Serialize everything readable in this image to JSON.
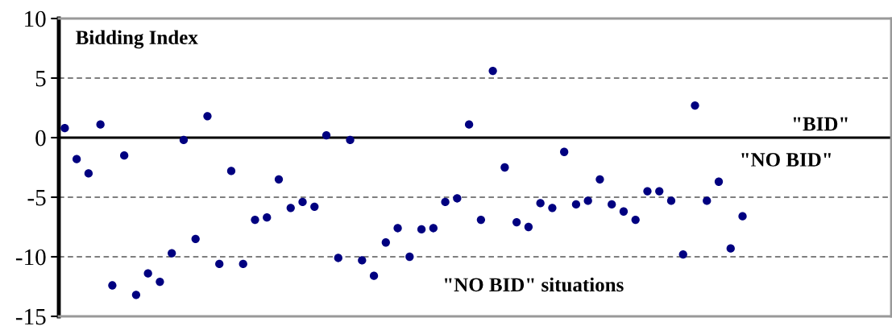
{
  "chart_data": {
    "type": "scatter",
    "categories": [
      null,
      null,
      null,
      null,
      null,
      null,
      null,
      null,
      null,
      null,
      null,
      null,
      null,
      null,
      null,
      null,
      null,
      null,
      null,
      null,
      null,
      null,
      null,
      null,
      null,
      null,
      null,
      null,
      null,
      null,
      null,
      null,
      null,
      null,
      null,
      null,
      null,
      null,
      null,
      null,
      null,
      null,
      null,
      null,
      null,
      null,
      null,
      null,
      null,
      null,
      null,
      null,
      null,
      null,
      null,
      null,
      null,
      null,
      null,
      null,
      null,
      null,
      null,
      null,
      null,
      null,
      null,
      null,
      null,
      null
    ],
    "series": [
      {
        "color": "#000080",
        "values": [
          0.8,
          -1.8,
          -3.0,
          1.1,
          -12.4,
          -1.5,
          -13.2,
          -11.4,
          -12.1,
          -9.7,
          -0.2,
          -8.5,
          1.8,
          -10.6,
          -2.8,
          -10.6,
          -6.9,
          -6.7,
          -3.5,
          -5.9,
          -5.4,
          -5.8,
          0.2,
          -10.1,
          -0.2,
          -10.3,
          -11.6,
          -8.8,
          -7.6,
          -10.0,
          -7.7,
          -7.6,
          -5.4,
          -5.1,
          1.1,
          -6.9,
          5.6,
          -2.5,
          -7.1,
          -7.5,
          -5.5,
          -5.9,
          -1.2,
          -5.6,
          -5.3,
          -3.5,
          -5.6,
          -6.2,
          -6.9,
          -4.5,
          -4.5,
          -5.3,
          -9.8,
          2.7,
          -5.3,
          -3.7,
          -9.3,
          -6.6,
          null,
          null,
          null,
          null,
          null,
          null,
          null,
          null,
          null,
          null,
          null,
          null
        ]
      }
    ],
    "ylim": [
      -15,
      10
    ],
    "yticks": [
      -15,
      -10,
      -5,
      0,
      5,
      10
    ],
    "grid": "y",
    "marker": "circle",
    "ref_lines": [
      {
        "axis": "y",
        "value": 0,
        "color": "#000000",
        "line_style": "solid"
      }
    ],
    "annotations": [
      "Bidding Index",
      "\"BID\"",
      "\"NO BID\"",
      "\"NO BID\" situations"
    ]
  }
}
